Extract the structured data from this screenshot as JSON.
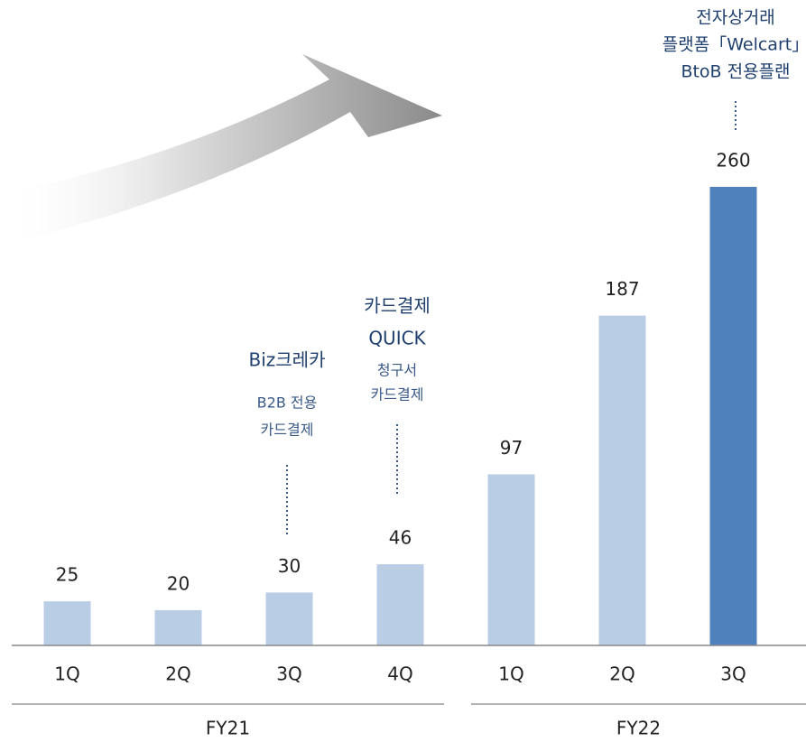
{
  "chart_data": {
    "type": "bar",
    "categories": [
      "1Q",
      "2Q",
      "3Q",
      "4Q",
      "1Q",
      "2Q",
      "3Q"
    ],
    "values": [
      25,
      20,
      30,
      46,
      97,
      187,
      260
    ],
    "colors": [
      "#b9cde5",
      "#b9cde5",
      "#b9cde5",
      "#b9cde5",
      "#b9cde5",
      "#b9cde5",
      "#4f81bd"
    ],
    "groups": [
      "FY21",
      "FY22"
    ],
    "annotations": [
      [
        "Biz크레카",
        "B2B 전용",
        "카드결제"
      ],
      [
        "카드결제",
        "QUICK",
        "청구서",
        "카드결제"
      ],
      [
        "전자상거래",
        "플랫폼「Welcart」",
        "BtoB 전용플랜"
      ]
    ]
  }
}
